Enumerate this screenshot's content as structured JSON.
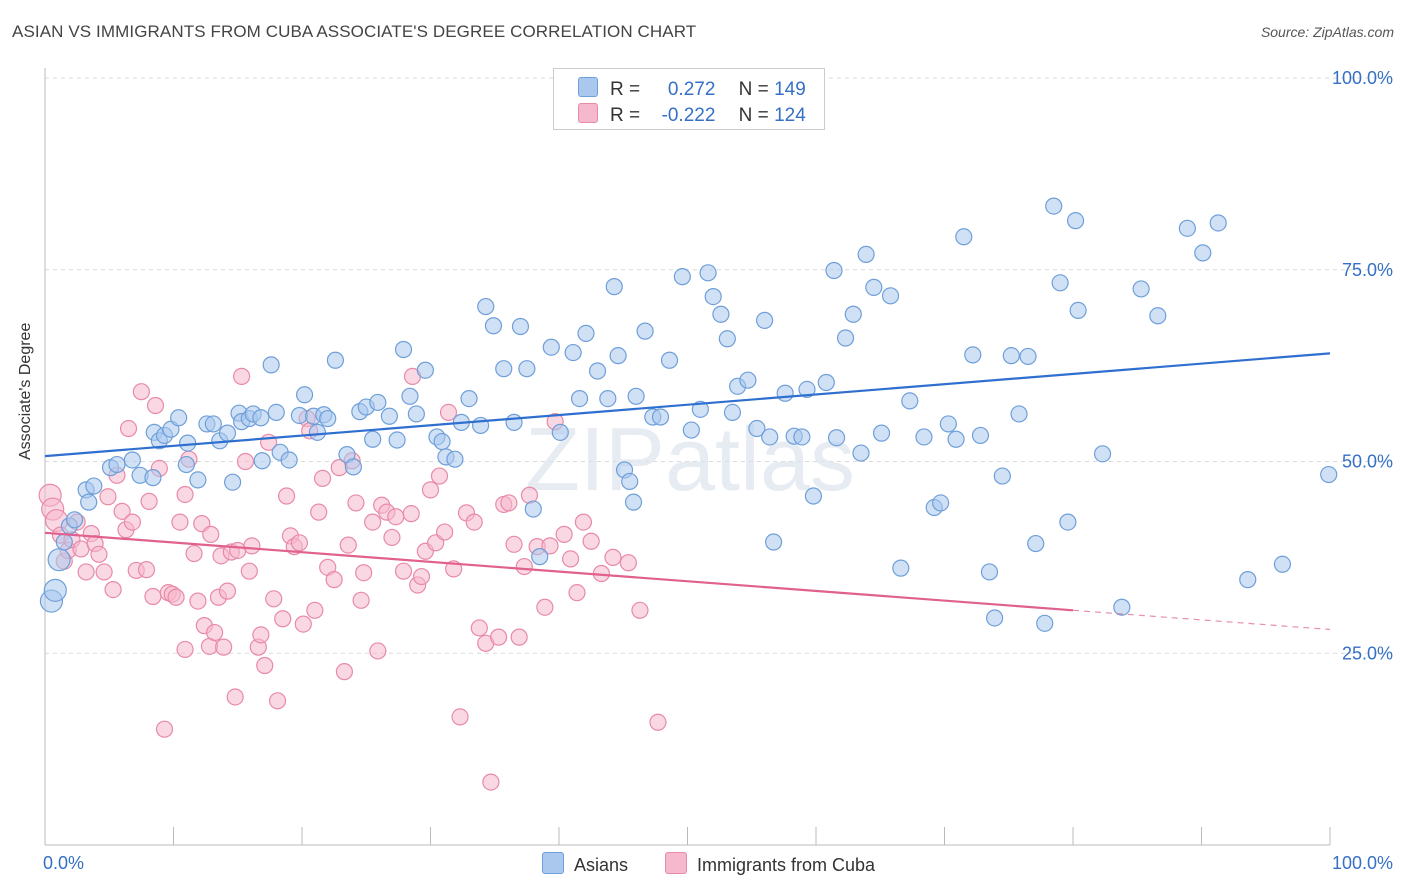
{
  "title": "ASIAN VS IMMIGRANTS FROM CUBA ASSOCIATE'S DEGREE CORRELATION CHART",
  "source": "Source: ZipAtlas.com",
  "watermark": "ZIPatlas",
  "legend": {
    "rows": [
      {
        "r_label": "R =",
        "r_value": "0.272",
        "n_label": "N =",
        "n_value": "149"
      },
      {
        "r_label": "R =",
        "r_value": "-0.222",
        "n_label": "N =",
        "n_value": "124"
      }
    ]
  },
  "bottom_legend": [
    "Asians",
    "Immigrants from Cuba"
  ],
  "colors": {
    "asian_fill": "#aac8ee",
    "asian_stroke": "#6f9fd8",
    "asian_line": "#2f6fcf",
    "cuba_fill": "#f5b8cc",
    "cuba_stroke": "#e88aa8",
    "cuba_line": "#e0608e",
    "axis_label": "#3570c6"
  },
  "chart_data": {
    "type": "scatter",
    "title": "ASIAN VS IMMIGRANTS FROM CUBA ASSOCIATE'S DEGREE CORRELATION CHART",
    "xlabel": "",
    "ylabel": "Associate's Degree",
    "x_tick_labels": [
      "0.0%",
      "100.0%"
    ],
    "y_tick_labels": [
      "25.0%",
      "50.0%",
      "75.0%",
      "100.0%"
    ],
    "xlim": [
      0,
      100
    ],
    "ylim": [
      0,
      103
    ],
    "grid": true,
    "series": [
      {
        "name": "Asians",
        "r": 0.272,
        "n": 149,
        "trend": {
          "x": [
            0,
            100
          ],
          "y": [
            50.7,
            64.1
          ]
        },
        "points": [
          [
            0.5,
            31.8
          ],
          [
            0.8,
            33.2
          ],
          [
            1.1,
            37.2
          ],
          [
            1.5,
            39.5
          ],
          [
            1.9,
            41.6
          ],
          [
            2.3,
            42.4
          ],
          [
            3.2,
            46.3
          ],
          [
            3.4,
            44.7
          ],
          [
            3.8,
            46.8
          ],
          [
            5.1,
            49.2
          ],
          [
            5.6,
            49.6
          ],
          [
            6.8,
            50.2
          ],
          [
            7.4,
            48.2
          ],
          [
            8.4,
            47.9
          ],
          [
            8.5,
            53.8
          ],
          [
            8.9,
            52.7
          ],
          [
            9.3,
            53.4
          ],
          [
            9.8,
            54.2
          ],
          [
            10.4,
            55.7
          ],
          [
            11.0,
            49.6
          ],
          [
            11.1,
            52.4
          ],
          [
            11.9,
            47.6
          ],
          [
            12.6,
            54.9
          ],
          [
            13.1,
            54.9
          ],
          [
            13.6,
            52.7
          ],
          [
            14.2,
            53.7
          ],
          [
            14.6,
            47.3
          ],
          [
            15.1,
            56.3
          ],
          [
            15.3,
            55.2
          ],
          [
            15.9,
            55.6
          ],
          [
            16.2,
            56.2
          ],
          [
            16.8,
            55.7
          ],
          [
            16.9,
            50.1
          ],
          [
            17.6,
            62.6
          ],
          [
            18.0,
            56.4
          ],
          [
            18.3,
            51.2
          ],
          [
            19.0,
            50.2
          ],
          [
            19.8,
            56.0
          ],
          [
            20.2,
            58.7
          ],
          [
            20.9,
            55.9
          ],
          [
            21.2,
            53.8
          ],
          [
            21.7,
            56.1
          ],
          [
            22.0,
            55.6
          ],
          [
            22.6,
            63.2
          ],
          [
            23.5,
            50.9
          ],
          [
            24.0,
            49.3
          ],
          [
            24.5,
            56.5
          ],
          [
            25.0,
            57.1
          ],
          [
            25.5,
            52.9
          ],
          [
            25.9,
            57.7
          ],
          [
            26.8,
            55.9
          ],
          [
            27.4,
            52.8
          ],
          [
            27.9,
            64.6
          ],
          [
            28.4,
            58.5
          ],
          [
            28.9,
            56.2
          ],
          [
            29.6,
            61.9
          ],
          [
            30.5,
            53.2
          ],
          [
            30.9,
            52.6
          ],
          [
            31.2,
            50.6
          ],
          [
            31.9,
            50.3
          ],
          [
            32.4,
            55.1
          ],
          [
            33.0,
            58.2
          ],
          [
            33.9,
            54.7
          ],
          [
            34.3,
            70.2
          ],
          [
            34.9,
            67.7
          ],
          [
            35.7,
            62.1
          ],
          [
            36.5,
            55.1
          ],
          [
            37.0,
            67.6
          ],
          [
            37.5,
            62.1
          ],
          [
            38.0,
            43.8
          ],
          [
            38.5,
            37.6
          ],
          [
            39.4,
            64.9
          ],
          [
            40.1,
            53.8
          ],
          [
            41.1,
            64.2
          ],
          [
            41.6,
            58.2
          ],
          [
            42.1,
            66.7
          ],
          [
            43.0,
            61.8
          ],
          [
            43.8,
            58.2
          ],
          [
            44.3,
            72.8
          ],
          [
            44.6,
            63.8
          ],
          [
            45.1,
            48.9
          ],
          [
            45.5,
            47.4
          ],
          [
            45.8,
            44.7
          ],
          [
            46.0,
            58.5
          ],
          [
            46.7,
            67.0
          ],
          [
            47.3,
            55.8
          ],
          [
            47.9,
            55.8
          ],
          [
            48.6,
            63.2
          ],
          [
            49.6,
            74.1
          ],
          [
            50.3,
            54.1
          ],
          [
            51.0,
            56.8
          ],
          [
            51.6,
            74.6
          ],
          [
            52.0,
            71.5
          ],
          [
            52.6,
            69.2
          ],
          [
            53.1,
            66.0
          ],
          [
            53.5,
            56.4
          ],
          [
            53.9,
            59.8
          ],
          [
            54.7,
            60.6
          ],
          [
            55.4,
            54.3
          ],
          [
            56.0,
            68.4
          ],
          [
            56.4,
            53.2
          ],
          [
            56.7,
            39.5
          ],
          [
            57.6,
            58.9
          ],
          [
            58.3,
            53.3
          ],
          [
            58.9,
            53.2
          ],
          [
            59.3,
            59.4
          ],
          [
            59.8,
            45.5
          ],
          [
            60.8,
            60.3
          ],
          [
            61.4,
            74.9
          ],
          [
            61.6,
            53.1
          ],
          [
            62.3,
            66.1
          ],
          [
            62.9,
            69.2
          ],
          [
            63.5,
            51.1
          ],
          [
            63.9,
            77.0
          ],
          [
            64.5,
            72.7
          ],
          [
            65.1,
            53.7
          ],
          [
            65.8,
            71.6
          ],
          [
            66.6,
            36.1
          ],
          [
            67.3,
            57.9
          ],
          [
            68.4,
            53.2
          ],
          [
            69.2,
            44.0
          ],
          [
            69.7,
            44.6
          ],
          [
            70.3,
            54.9
          ],
          [
            70.9,
            52.9
          ],
          [
            71.5,
            79.3
          ],
          [
            72.2,
            63.9
          ],
          [
            72.8,
            53.4
          ],
          [
            73.5,
            35.6
          ],
          [
            73.9,
            29.6
          ],
          [
            74.5,
            48.1
          ],
          [
            75.2,
            63.8
          ],
          [
            75.8,
            56.2
          ],
          [
            76.5,
            63.7
          ],
          [
            77.1,
            39.3
          ],
          [
            77.8,
            28.9
          ],
          [
            78.5,
            83.3
          ],
          [
            79.0,
            73.3
          ],
          [
            79.6,
            42.1
          ],
          [
            80.2,
            81.4
          ],
          [
            80.4,
            69.7
          ],
          [
            82.3,
            51.0
          ],
          [
            83.8,
            31.0
          ],
          [
            85.3,
            72.5
          ],
          [
            86.6,
            69.0
          ],
          [
            88.9,
            80.4
          ],
          [
            90.1,
            77.2
          ],
          [
            91.3,
            81.1
          ],
          [
            93.6,
            34.6
          ],
          [
            96.3,
            36.6
          ],
          [
            99.9,
            48.3
          ]
        ]
      },
      {
        "name": "Immigrants from Cuba",
        "r": -0.222,
        "n": 124,
        "trend": {
          "x": [
            0,
            80
          ],
          "y": [
            40.7,
            30.6
          ]
        },
        "trend_dashed": {
          "x": [
            80,
            100
          ],
          "y": [
            30.6,
            28.1
          ]
        },
        "points": [
          [
            0.4,
            45.6
          ],
          [
            0.6,
            43.8
          ],
          [
            0.9,
            42.3
          ],
          [
            1.2,
            40.4
          ],
          [
            1.5,
            37.0
          ],
          [
            1.8,
            38.4
          ],
          [
            2.1,
            39.8
          ],
          [
            2.5,
            42.1
          ],
          [
            2.8,
            38.6
          ],
          [
            3.2,
            35.6
          ],
          [
            3.6,
            40.6
          ],
          [
            3.9,
            39.3
          ],
          [
            4.2,
            37.9
          ],
          [
            4.6,
            35.6
          ],
          [
            4.9,
            45.4
          ],
          [
            5.3,
            33.3
          ],
          [
            5.6,
            48.2
          ],
          [
            6.0,
            43.5
          ],
          [
            6.3,
            41.1
          ],
          [
            6.5,
            54.3
          ],
          [
            6.8,
            42.1
          ],
          [
            7.1,
            35.8
          ],
          [
            7.5,
            59.1
          ],
          [
            7.9,
            35.9
          ],
          [
            8.1,
            44.8
          ],
          [
            8.4,
            32.4
          ],
          [
            8.6,
            57.3
          ],
          [
            8.9,
            49.1
          ],
          [
            9.3,
            15.1
          ],
          [
            9.6,
            32.9
          ],
          [
            9.9,
            32.7
          ],
          [
            10.2,
            32.3
          ],
          [
            10.5,
            42.1
          ],
          [
            10.9,
            25.5
          ],
          [
            10.9,
            45.7
          ],
          [
            11.2,
            50.3
          ],
          [
            11.6,
            38.0
          ],
          [
            11.9,
            31.8
          ],
          [
            12.2,
            41.9
          ],
          [
            12.4,
            28.6
          ],
          [
            12.8,
            25.9
          ],
          [
            12.9,
            40.5
          ],
          [
            13.2,
            27.7
          ],
          [
            13.5,
            32.3
          ],
          [
            13.7,
            37.7
          ],
          [
            13.9,
            25.8
          ],
          [
            14.2,
            33.1
          ],
          [
            14.5,
            38.2
          ],
          [
            14.8,
            19.3
          ],
          [
            15.0,
            38.4
          ],
          [
            15.3,
            61.1
          ],
          [
            15.6,
            50.0
          ],
          [
            15.9,
            35.7
          ],
          [
            16.1,
            39.0
          ],
          [
            16.6,
            25.8
          ],
          [
            16.8,
            27.4
          ],
          [
            17.1,
            23.4
          ],
          [
            17.4,
            52.5
          ],
          [
            17.8,
            32.1
          ],
          [
            18.1,
            18.8
          ],
          [
            18.5,
            29.5
          ],
          [
            18.8,
            45.5
          ],
          [
            19.1,
            40.3
          ],
          [
            19.4,
            38.9
          ],
          [
            19.8,
            39.4
          ],
          [
            20.1,
            28.8
          ],
          [
            20.4,
            55.6
          ],
          [
            20.6,
            54.0
          ],
          [
            21.0,
            30.6
          ],
          [
            21.3,
            43.4
          ],
          [
            21.6,
            47.8
          ],
          [
            22.0,
            36.2
          ],
          [
            22.5,
            34.6
          ],
          [
            22.9,
            49.2
          ],
          [
            23.3,
            22.6
          ],
          [
            23.6,
            39.1
          ],
          [
            23.9,
            50.1
          ],
          [
            24.2,
            44.6
          ],
          [
            24.6,
            31.9
          ],
          [
            24.8,
            35.5
          ],
          [
            25.5,
            42.1
          ],
          [
            25.9,
            25.3
          ],
          [
            26.2,
            44.3
          ],
          [
            26.6,
            43.4
          ],
          [
            27.0,
            40.1
          ],
          [
            27.3,
            42.8
          ],
          [
            27.9,
            35.7
          ],
          [
            28.5,
            43.2
          ],
          [
            28.6,
            61.1
          ],
          [
            29.0,
            33.9
          ],
          [
            29.3,
            35.0
          ],
          [
            29.6,
            38.3
          ],
          [
            30.0,
            46.3
          ],
          [
            30.4,
            39.4
          ],
          [
            30.7,
            48.1
          ],
          [
            31.1,
            40.8
          ],
          [
            31.4,
            56.4
          ],
          [
            31.8,
            36.0
          ],
          [
            32.3,
            16.7
          ],
          [
            32.8,
            43.3
          ],
          [
            33.4,
            42.1
          ],
          [
            33.8,
            28.3
          ],
          [
            34.3,
            26.3
          ],
          [
            34.7,
            8.2
          ],
          [
            35.3,
            27.1
          ],
          [
            35.7,
            44.4
          ],
          [
            36.1,
            44.6
          ],
          [
            36.5,
            39.2
          ],
          [
            36.9,
            27.1
          ],
          [
            37.3,
            36.3
          ],
          [
            37.7,
            45.6
          ],
          [
            38.3,
            38.9
          ],
          [
            38.9,
            31.0
          ],
          [
            39.3,
            39.0
          ],
          [
            39.7,
            55.2
          ],
          [
            40.4,
            40.5
          ],
          [
            40.9,
            37.3
          ],
          [
            41.4,
            32.9
          ],
          [
            41.9,
            42.1
          ],
          [
            42.5,
            39.6
          ],
          [
            43.3,
            35.4
          ],
          [
            44.2,
            37.5
          ],
          [
            45.4,
            36.8
          ],
          [
            46.3,
            30.6
          ],
          [
            47.7,
            16.0
          ]
        ]
      }
    ]
  }
}
